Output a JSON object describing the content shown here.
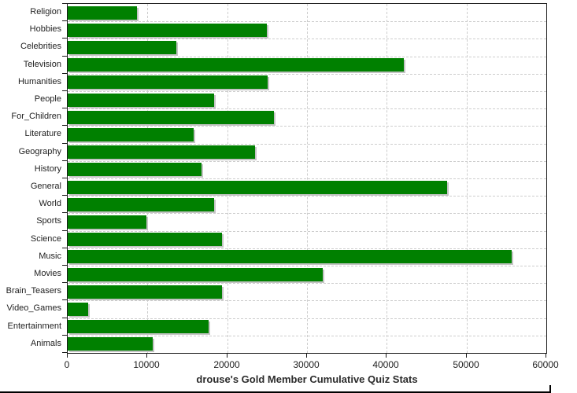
{
  "chart_data": {
    "type": "bar",
    "orientation": "horizontal",
    "title": "drouse's Gold Member Cumulative Quiz Stats",
    "xlabel": "",
    "ylabel": "",
    "categories": [
      "Religion",
      "Hobbies",
      "Celebrities",
      "Television",
      "Humanities",
      "People",
      "For_Children",
      "Literature",
      "Geography",
      "History",
      "General",
      "World",
      "Sports",
      "Science",
      "Music",
      "Movies",
      "Brain_Teasers",
      "Video_Games",
      "Entertainment",
      "Animals"
    ],
    "values": [
      8700,
      25000,
      13600,
      42100,
      25100,
      18400,
      25900,
      15800,
      23500,
      16800,
      47600,
      18400,
      9900,
      19300,
      55700,
      32000,
      19300,
      2600,
      17700,
      10700
    ],
    "xlim": [
      0,
      60000
    ],
    "xticks": [
      0,
      10000,
      20000,
      30000,
      40000,
      50000,
      60000
    ],
    "grid": true,
    "legend": "none"
  },
  "colors": {
    "bar": "#008000",
    "bar_shadow": "#c4c4c4",
    "grid": "#cdcdcd",
    "axis": "#1a1a1a",
    "text": "#222222",
    "background": "#ffffff"
  }
}
